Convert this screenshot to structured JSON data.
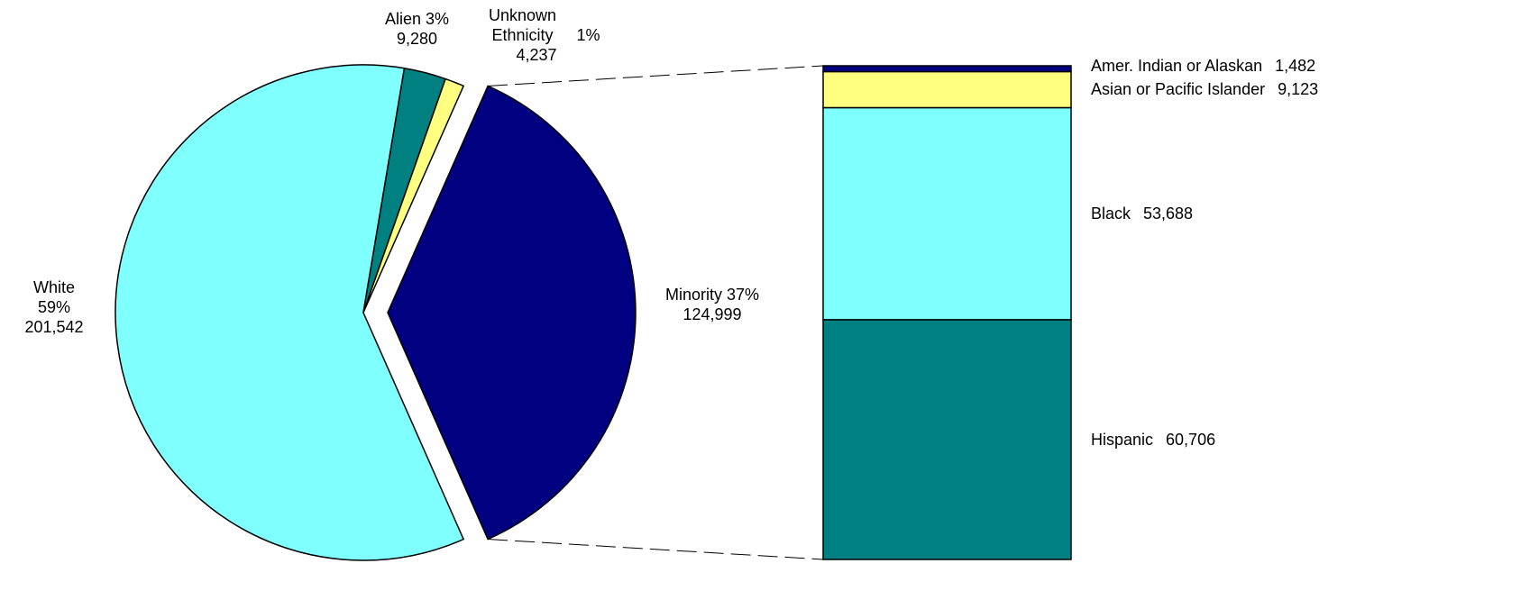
{
  "chart_data": {
    "type": "pie-of-bar",
    "pie": {
      "categories": [
        "White",
        "Alien",
        "Unknown Ethnicity",
        "Minority"
      ],
      "values": [
        201542,
        9280,
        4237,
        124999
      ],
      "value_labels": [
        "201,542",
        "9,280",
        "4,237",
        "124,999"
      ],
      "percents": [
        59,
        3,
        1,
        37
      ],
      "percent_labels": [
        "59%",
        "3%",
        "1%",
        "37%"
      ],
      "colors": [
        "#80ffff",
        "#008080",
        "#ffff80",
        "#000080"
      ]
    },
    "bar": {
      "categories": [
        "Hispanic",
        "Black",
        "Asian or Pacific Islander",
        "Amer. Indian or Alaskan"
      ],
      "values": [
        60706,
        53688,
        9123,
        1482
      ],
      "value_labels": [
        "60,706",
        "53,688",
        "9,123",
        "1,482"
      ],
      "colors": [
        "#008080",
        "#80ffff",
        "#ffff80",
        "#000080"
      ]
    }
  }
}
